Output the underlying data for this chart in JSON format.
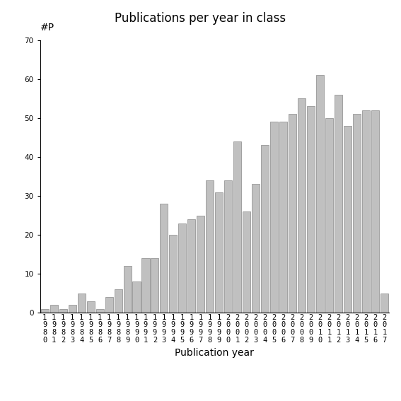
{
  "title": "Publications per year in class",
  "xlabel": "Publication year",
  "ylabel": "#P",
  "years": [
    "1980",
    "1981",
    "1982",
    "1983",
    "1984",
    "1985",
    "1986",
    "1987",
    "1988",
    "1989",
    "1990",
    "1991",
    "1992",
    "1993",
    "1994",
    "1995",
    "1996",
    "1997",
    "1998",
    "1999",
    "2000",
    "2001",
    "2002",
    "2003",
    "2004",
    "2005",
    "2006",
    "2007",
    "2008",
    "2009",
    "2010",
    "2011",
    "2012",
    "2013",
    "2014",
    "2015",
    "2016",
    "2017"
  ],
  "values": [
    1,
    2,
    1,
    2,
    5,
    3,
    1,
    4,
    6,
    12,
    8,
    14,
    14,
    28,
    20,
    23,
    24,
    25,
    34,
    31,
    34,
    44,
    26,
    33,
    43,
    49,
    49,
    51,
    55,
    53,
    61,
    50,
    56,
    48,
    51,
    52,
    52,
    5
  ],
  "bar_color": "#c0c0c0",
  "bar_edgecolor": "#888888",
  "ylim": [
    0,
    70
  ],
  "yticks": [
    0,
    10,
    20,
    30,
    40,
    50,
    60,
    70
  ],
  "background_color": "#ffffff",
  "title_fontsize": 12,
  "axis_label_fontsize": 10,
  "tick_fontsize": 7.5
}
